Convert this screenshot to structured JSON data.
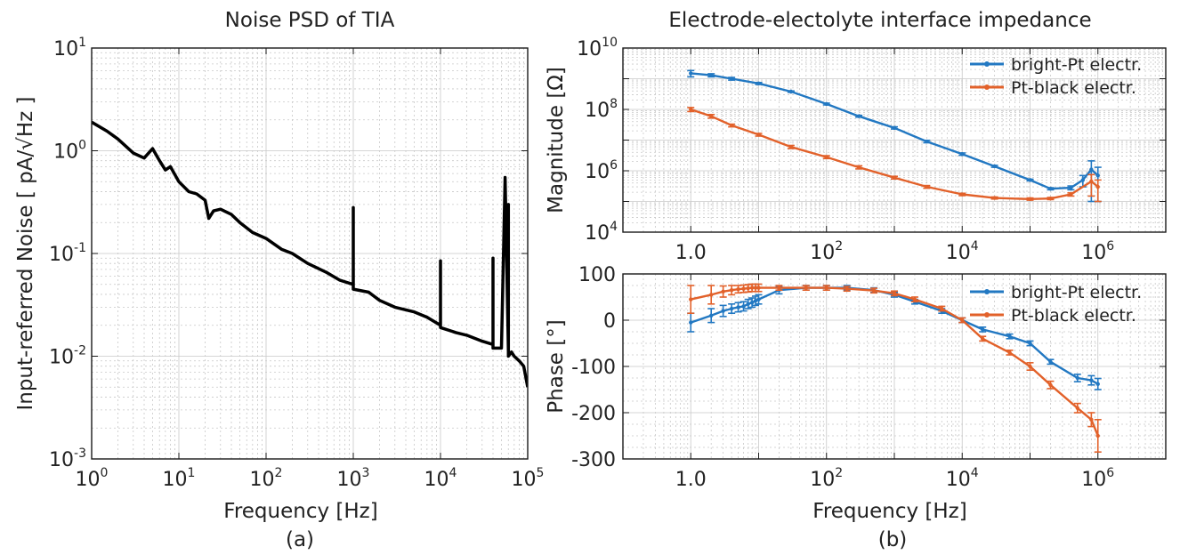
{
  "chart_data": [
    {
      "id": "a",
      "type": "line",
      "title": "Noise PSD of TIA",
      "xlabel": "Frequency [Hz]",
      "ylabel": "Input-referred Noise [ pA/√Hz ]",
      "xscale": "log",
      "yscale": "log",
      "xlim": [
        1,
        100000
      ],
      "ylim": [
        0.001,
        10
      ],
      "grid": true,
      "caption": "(a)",
      "series": [
        {
          "color": "#000000",
          "x": [
            1,
            1.5,
            2,
            3,
            4,
            5,
            6,
            7,
            8,
            10,
            13,
            16,
            20,
            22,
            25,
            30,
            40,
            50,
            70,
            100,
            150,
            200,
            300,
            500,
            700,
            1000,
            1000,
            1000,
            1500,
            2000,
            3000,
            5000,
            7000,
            10000,
            10000,
            10000,
            15000,
            20000,
            30000,
            40000,
            40000,
            40000,
            50000,
            55000,
            60000,
            60000,
            60000,
            65000,
            70000,
            80000,
            90000,
            100000
          ],
          "y": [
            1.9,
            1.55,
            1.3,
            0.95,
            0.85,
            1.05,
            0.8,
            0.65,
            0.7,
            0.5,
            0.4,
            0.38,
            0.33,
            0.22,
            0.26,
            0.27,
            0.24,
            0.2,
            0.16,
            0.14,
            0.11,
            0.1,
            0.08,
            0.065,
            0.055,
            0.05,
            0.28,
            0.045,
            0.042,
            0.035,
            0.03,
            0.027,
            0.024,
            0.02,
            0.085,
            0.019,
            0.017,
            0.016,
            0.014,
            0.013,
            0.09,
            0.012,
            0.012,
            0.55,
            0.011,
            0.3,
            0.01,
            0.011,
            0.01,
            0.009,
            0.008,
            0.005
          ]
        }
      ]
    },
    {
      "id": "b-magnitude",
      "type": "line",
      "title": "Electrode-electolyte interface impedance",
      "xlabel": "",
      "ylabel": "Magnitude [Ω]",
      "xscale": "log",
      "yscale": "log",
      "xlim": [
        0.1,
        10000000
      ],
      "ylim": [
        10000,
        10000000000
      ],
      "grid": true,
      "legend": "top-right",
      "series": [
        {
          "name": "bright-Pt electr.",
          "color": "#2278c2",
          "x": [
            1,
            2,
            4,
            10,
            30,
            100,
            300,
            1000,
            3000,
            10000,
            30000,
            100000,
            200000,
            400000,
            600000,
            800000,
            1000000
          ],
          "y": [
            1500000000,
            1300000000,
            1000000000,
            700000000,
            380000000,
            150000000,
            60000000,
            25000000,
            9000000,
            3500000,
            1400000,
            500000,
            260000,
            280000,
            500000,
            1100000,
            700000
          ],
          "err": [
            350000000,
            150000000,
            100000000,
            50000000,
            20000000,
            10000000,
            4000000,
            2000000,
            800000,
            300000,
            100000,
            30000,
            20000,
            40000,
            200000,
            1000000,
            600000
          ]
        },
        {
          "name": "Pt-black electr.",
          "color": "#e2612a",
          "x": [
            1,
            2,
            4,
            10,
            30,
            100,
            300,
            1000,
            3000,
            10000,
            30000,
            100000,
            200000,
            400000,
            800000,
            1000000
          ],
          "y": [
            100000000,
            60000000,
            30000000,
            15000000,
            6000000,
            2800000,
            1300000,
            600000,
            300000,
            170000,
            130000,
            120000,
            125000,
            170000,
            450000,
            300000
          ],
          "err": [
            15000000,
            8000000,
            3000000,
            1500000,
            700000,
            300000,
            150000,
            60000,
            30000,
            15000,
            10000,
            10000,
            10000,
            20000,
            300000,
            200000
          ]
        }
      ]
    },
    {
      "id": "b-phase",
      "type": "line",
      "title": "",
      "xlabel": "Frequency [Hz]",
      "ylabel": "Phase [°]",
      "xscale": "log",
      "yscale": "linear",
      "xlim": [
        0.1,
        10000000
      ],
      "ylim": [
        -300,
        100
      ],
      "yticks": [
        -300,
        -200,
        -100,
        0,
        100
      ],
      "grid": true,
      "legend": "top-right",
      "caption": "(b)",
      "series": [
        {
          "name": "bright-Pt electr.",
          "color": "#2278c2",
          "x": [
            1,
            2,
            3,
            4,
            5,
            6,
            7,
            8,
            9,
            10,
            20,
            50,
            100,
            200,
            500,
            1000,
            2000,
            5000,
            10000,
            20000,
            50000,
            100000,
            200000,
            500000,
            800000,
            1000000
          ],
          "y": [
            -5,
            10,
            20,
            25,
            28,
            30,
            35,
            38,
            42,
            45,
            65,
            70,
            70,
            70,
            65,
            55,
            40,
            20,
            0,
            -20,
            -35,
            -50,
            -90,
            -125,
            -130,
            -138
          ],
          "err": [
            20,
            15,
            12,
            10,
            10,
            10,
            10,
            10,
            10,
            10,
            8,
            5,
            5,
            5,
            5,
            5,
            5,
            5,
            5,
            5,
            5,
            5,
            5,
            8,
            10,
            12
          ]
        },
        {
          "name": "Pt-black electr.",
          "color": "#e2612a",
          "x": [
            1,
            2,
            3,
            4,
            5,
            6,
            7,
            8,
            9,
            10,
            20,
            50,
            100,
            200,
            500,
            1000,
            2000,
            5000,
            10000,
            20000,
            50000,
            100000,
            200000,
            500000,
            800000,
            1000000
          ],
          "y": [
            45,
            55,
            62,
            65,
            67,
            68,
            69,
            70,
            70,
            70,
            70,
            70,
            70,
            68,
            64,
            58,
            45,
            25,
            0,
            -40,
            -70,
            -100,
            -140,
            -190,
            -215,
            -250
          ],
          "err": [
            30,
            20,
            12,
            10,
            8,
            8,
            8,
            8,
            8,
            8,
            5,
            5,
            5,
            5,
            5,
            5,
            5,
            5,
            5,
            5,
            5,
            8,
            8,
            10,
            15,
            35
          ]
        }
      ]
    }
  ]
}
